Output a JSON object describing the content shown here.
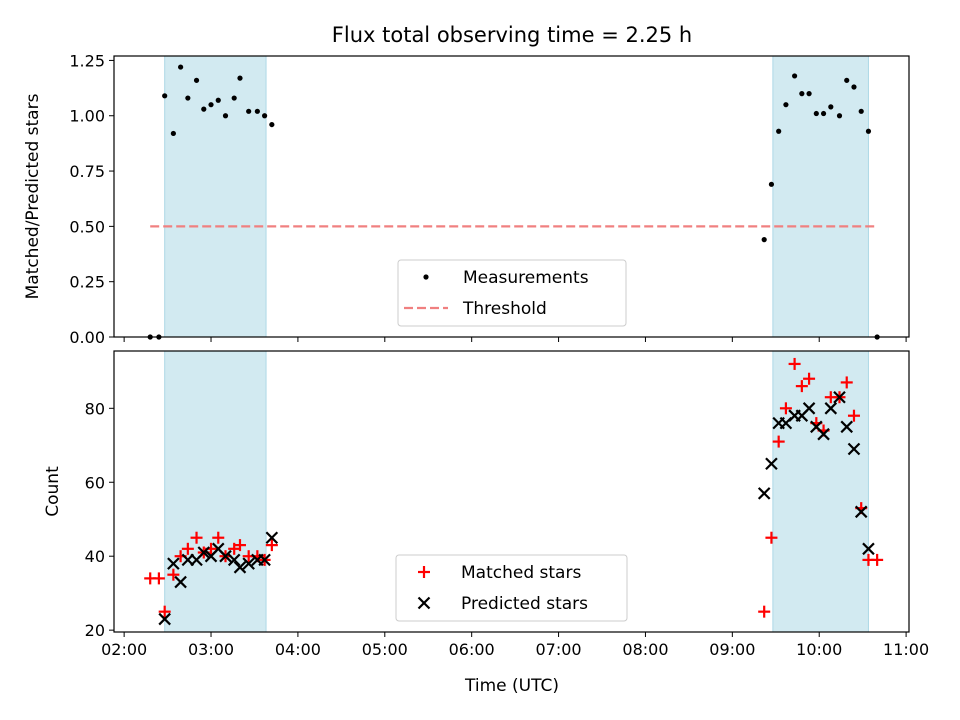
{
  "chart_data": {
    "type": "scatter",
    "title": "Flux total observing time = 2.25 h",
    "xlabel": "Time (UTC)",
    "x_ticks": [
      "02:00",
      "03:00",
      "04:00",
      "05:00",
      "06:00",
      "07:00",
      "08:00",
      "09:00",
      "10:00",
      "11:00"
    ],
    "shaded_intervals": [
      [
        "02:28",
        "03:38"
      ],
      [
        "09:28",
        "10:34"
      ]
    ],
    "colors": {
      "shade": "#add8e6",
      "measurements": "#000000",
      "threshold": "#f08080",
      "matched": "#ff0000",
      "predicted": "#000000"
    },
    "panels": [
      {
        "ylabel": "Matched/Predicted stars",
        "ylim": [
          0,
          1.27
        ],
        "y_ticks": [
          "0.00",
          "0.25",
          "0.50",
          "0.75",
          "1.00",
          "1.25"
        ],
        "legend": {
          "location": "lower center",
          "entries": [
            "Measurements",
            "Threshold"
          ]
        },
        "series": [
          {
            "name": "Measurements",
            "marker": "dot",
            "points": [
              [
                "02:18",
                0.0
              ],
              [
                "02:24",
                0.0
              ],
              [
                "02:28",
                1.09
              ],
              [
                "02:34",
                0.92
              ],
              [
                "02:39",
                1.22
              ],
              [
                "02:44",
                1.08
              ],
              [
                "02:50",
                1.16
              ],
              [
                "02:55",
                1.03
              ],
              [
                "03:00",
                1.05
              ],
              [
                "03:05",
                1.07
              ],
              [
                "03:10",
                1.0
              ],
              [
                "03:16",
                1.08
              ],
              [
                "03:20",
                1.17
              ],
              [
                "03:26",
                1.02
              ],
              [
                "03:32",
                1.02
              ],
              [
                "03:37",
                1.0
              ],
              [
                "03:42",
                0.96
              ],
              [
                "09:22",
                0.44
              ],
              [
                "09:27",
                0.69
              ],
              [
                "09:32",
                0.93
              ],
              [
                "09:37",
                1.05
              ],
              [
                "09:43",
                1.18
              ],
              [
                "09:48",
                1.1
              ],
              [
                "09:53",
                1.1
              ],
              [
                "09:58",
                1.01
              ],
              [
                "10:03",
                1.01
              ],
              [
                "10:08",
                1.04
              ],
              [
                "10:14",
                1.0
              ],
              [
                "10:19",
                1.16
              ],
              [
                "10:24",
                1.13
              ],
              [
                "10:29",
                1.02
              ],
              [
                "10:34",
                0.93
              ],
              [
                "10:40",
                0.0
              ]
            ]
          },
          {
            "name": "Threshold",
            "style": "dashed",
            "y": 0.5,
            "x_range": [
              "02:18",
              "10:40"
            ]
          }
        ]
      },
      {
        "ylabel": "Count",
        "ylim": [
          19.5,
          95.5
        ],
        "y_ticks": [
          "20",
          "40",
          "60",
          "80"
        ],
        "legend": {
          "location": "lower center",
          "entries": [
            "Matched stars",
            "Predicted stars"
          ]
        },
        "series": [
          {
            "name": "Matched stars",
            "marker": "plus",
            "points": [
              [
                "02:18",
                34
              ],
              [
                "02:24",
                34
              ],
              [
                "02:28",
                25
              ],
              [
                "02:34",
                35
              ],
              [
                "02:39",
                40
              ],
              [
                "02:44",
                42
              ],
              [
                "02:50",
                45
              ],
              [
                "02:55",
                41
              ],
              [
                "03:00",
                42
              ],
              [
                "03:05",
                45
              ],
              [
                "03:10",
                40
              ],
              [
                "03:16",
                42
              ],
              [
                "03:20",
                43
              ],
              [
                "03:26",
                40
              ],
              [
                "03:32",
                40
              ],
              [
                "03:37",
                39
              ],
              [
                "03:42",
                43
              ],
              [
                "09:22",
                25
              ],
              [
                "09:27",
                45
              ],
              [
                "09:32",
                71
              ],
              [
                "09:37",
                80
              ],
              [
                "09:43",
                92
              ],
              [
                "09:48",
                86
              ],
              [
                "09:53",
                88
              ],
              [
                "09:58",
                76
              ],
              [
                "10:03",
                74
              ],
              [
                "10:08",
                83
              ],
              [
                "10:14",
                83
              ],
              [
                "10:19",
                87
              ],
              [
                "10:24",
                78
              ],
              [
                "10:29",
                53
              ],
              [
                "10:34",
                39
              ],
              [
                "10:40",
                39
              ]
            ]
          },
          {
            "name": "Predicted stars",
            "marker": "x",
            "points": [
              [
                "02:28",
                23
              ],
              [
                "02:34",
                38
              ],
              [
                "02:39",
                33
              ],
              [
                "02:44",
                39
              ],
              [
                "02:50",
                39
              ],
              [
                "02:55",
                41
              ],
              [
                "03:00",
                40
              ],
              [
                "03:05",
                42
              ],
              [
                "03:10",
                40
              ],
              [
                "03:16",
                39
              ],
              [
                "03:20",
                37
              ],
              [
                "03:26",
                38
              ],
              [
                "03:32",
                39
              ],
              [
                "03:37",
                39
              ],
              [
                "03:42",
                45
              ],
              [
                "09:22",
                57
              ],
              [
                "09:27",
                65
              ],
              [
                "09:32",
                76
              ],
              [
                "09:37",
                76
              ],
              [
                "09:43",
                78
              ],
              [
                "09:48",
                78
              ],
              [
                "09:53",
                80
              ],
              [
                "09:58",
                75
              ],
              [
                "10:03",
                73
              ],
              [
                "10:08",
                80
              ],
              [
                "10:14",
                83
              ],
              [
                "10:19",
                75
              ],
              [
                "10:24",
                69
              ],
              [
                "10:29",
                52
              ],
              [
                "10:34",
                42
              ]
            ]
          }
        ]
      }
    ]
  }
}
